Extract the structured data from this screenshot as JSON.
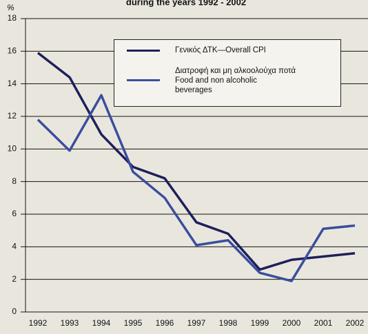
{
  "chart_data": {
    "type": "line",
    "title": "during the years 1992 - 2002",
    "ylabel": "%",
    "categories": [
      "1992",
      "1993",
      "1994",
      "1995",
      "1996",
      "1997",
      "1998",
      "1999",
      "2000",
      "2001",
      "2002"
    ],
    "series": [
      {
        "name": "Γενικός ΔΤΚ—Overall CPI",
        "color": "#1e1f5c",
        "values": [
          15.9,
          14.4,
          10.9,
          8.9,
          8.2,
          5.5,
          4.8,
          2.6,
          3.2,
          3.4,
          3.6
        ]
      },
      {
        "name": "Διατροφή και μη αλκοολούχα ποτά\nFood and non alcoholic\nbeverages",
        "color": "#3a4e9e",
        "values": [
          11.8,
          9.9,
          13.3,
          8.6,
          7.0,
          4.1,
          4.4,
          2.4,
          1.9,
          5.1,
          5.3
        ]
      }
    ],
    "ylim": [
      0,
      18
    ],
    "yticks": [
      0,
      2,
      4,
      6,
      8,
      10,
      12,
      14,
      16,
      18
    ],
    "grid": true
  }
}
